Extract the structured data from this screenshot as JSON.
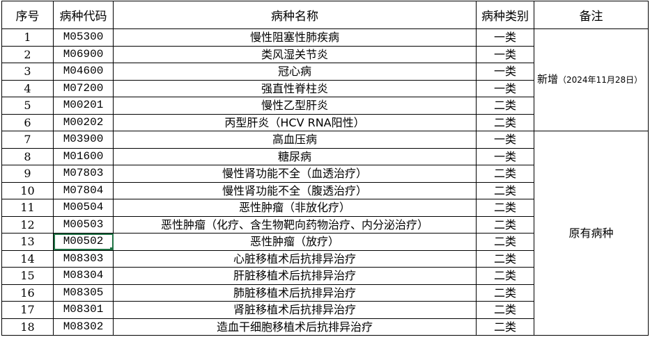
{
  "headers": [
    "序号",
    "病种代码",
    "病种名称",
    "病种类别",
    "备注"
  ],
  "selected_cell": {
    "row": 13,
    "column": "病种代码"
  },
  "accent_color": "#217346",
  "notes": {
    "group1_main": "新增",
    "group1_detail": "（2024年11月28日）",
    "group2": "原有病种"
  },
  "rows": [
    {
      "no": "1",
      "code": "M05300",
      "name": "慢性阻塞性肺疾病",
      "cat": "一类"
    },
    {
      "no": "2",
      "code": "M06900",
      "name": "类风湿关节炎",
      "cat": "一类"
    },
    {
      "no": "3",
      "code": "M04600",
      "name": "冠心病",
      "cat": "一类"
    },
    {
      "no": "4",
      "code": "M07200",
      "name": "强直性脊柱炎",
      "cat": "一类"
    },
    {
      "no": "5",
      "code": "M00201",
      "name": "慢性乙型肝炎",
      "cat": "二类"
    },
    {
      "no": "6",
      "code": "M00202",
      "name": "丙型肝炎（HCV RNA阳性）",
      "cat": "二类"
    },
    {
      "no": "7",
      "code": "M03900",
      "name": "高血压病",
      "cat": "一类"
    },
    {
      "no": "8",
      "code": "M01600",
      "name": "糖尿病",
      "cat": "一类"
    },
    {
      "no": "9",
      "code": "M07803",
      "name": "慢性肾功能不全（血透治疗）",
      "cat": "二类"
    },
    {
      "no": "10",
      "code": "M07804",
      "name": "慢性肾功能不全（腹透治疗）",
      "cat": "二类"
    },
    {
      "no": "11",
      "code": "M00504",
      "name": "恶性肿瘤（非放化疗）",
      "cat": "二类"
    },
    {
      "no": "12",
      "code": "M00503",
      "name": "恶性肿瘤（化疗、含生物靶向药物治疗、内分泌治疗）",
      "cat": "二类"
    },
    {
      "no": "13",
      "code": "M00502",
      "name": "恶性肿瘤（放疗）",
      "cat": "二类"
    },
    {
      "no": "14",
      "code": "M08303",
      "name": "心脏移植术后抗排异治疗",
      "cat": "二类"
    },
    {
      "no": "15",
      "code": "M08304",
      "name": "肝脏移植术后抗排异治疗",
      "cat": "二类"
    },
    {
      "no": "16",
      "code": "M08305",
      "name": "肺脏移植术后抗排异治疗",
      "cat": "二类"
    },
    {
      "no": "17",
      "code": "M08301",
      "name": "肾脏移植术后抗排异治疗",
      "cat": "二类"
    },
    {
      "no": "18",
      "code": "M08302",
      "name": "造血干细胞移植术后抗排异治疗",
      "cat": "二类"
    }
  ]
}
